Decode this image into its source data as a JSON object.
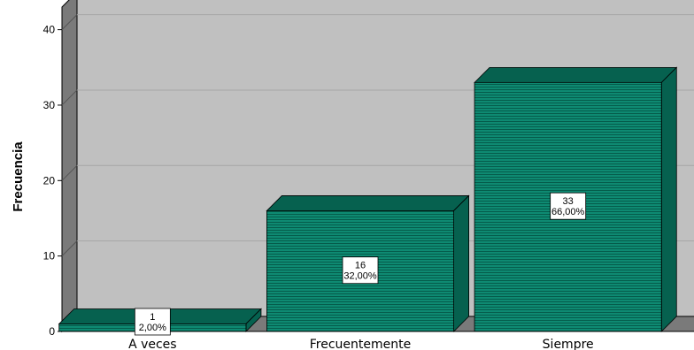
{
  "chart_data": {
    "type": "bar",
    "categories": [
      "A veces",
      "Frecuentemente",
      "Siempre"
    ],
    "values": [
      1,
      16,
      33
    ],
    "percent_labels": [
      "2,00%",
      "32,00%",
      "66,00%"
    ],
    "count_labels": [
      "1",
      "16",
      "33"
    ],
    "title": "",
    "xlabel": "",
    "ylabel": "Frecuencia",
    "ylim": [
      0,
      43
    ],
    "yticks": [
      "0",
      "10",
      "20",
      "30",
      "40"
    ],
    "grid": true,
    "bar_color": "#0e8a72",
    "bar_dark_color": "#06614f",
    "plot_background": "#c0c0c0"
  }
}
